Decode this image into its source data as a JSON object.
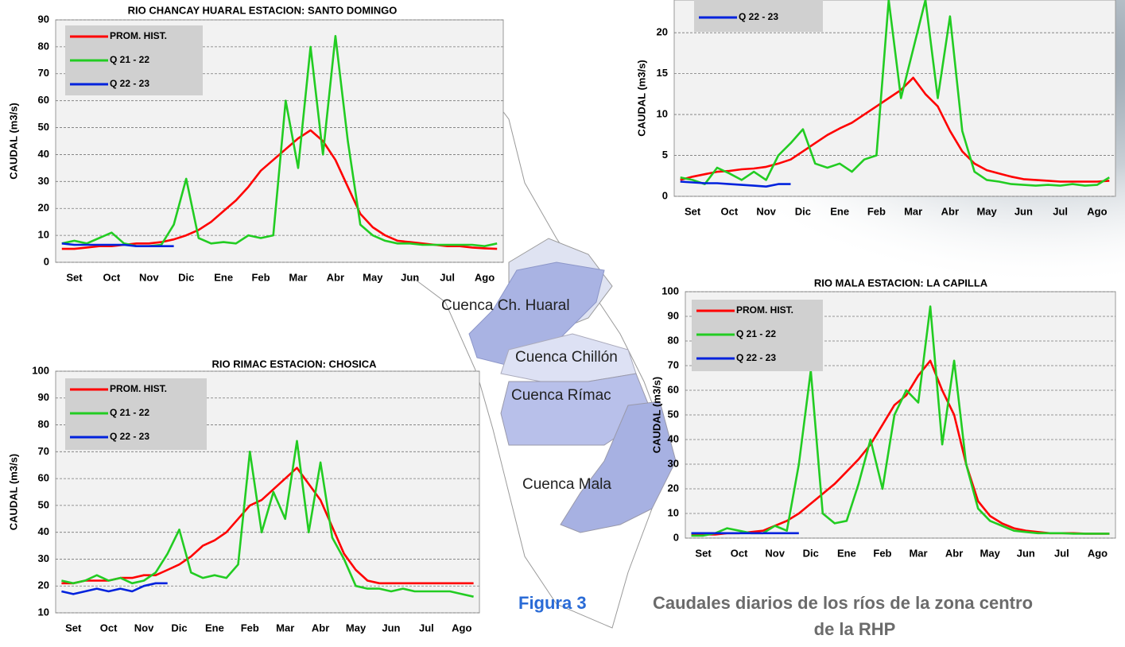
{
  "chart_data": [
    {
      "type": "line",
      "title": "RIO CHANCAY HUARAL ESTACION:  SANTO DOMINGO",
      "y_label": "CAUDAL (m3/s)",
      "categories": [
        "Set",
        null,
        null,
        "Oct",
        null,
        null,
        "Nov",
        null,
        null,
        "Dic",
        null,
        null,
        "Ene",
        null,
        null,
        "Feb",
        null,
        null,
        "Mar",
        null,
        null,
        "Abr",
        null,
        null,
        "May",
        null,
        null,
        "Jun",
        null,
        null,
        "Jul",
        null,
        null,
        "Ago",
        null,
        null
      ],
      "ylim": [
        0,
        90
      ],
      "yticks": [
        0,
        10,
        20,
        30,
        40,
        50,
        60,
        70,
        80,
        90
      ],
      "grid": true,
      "series": [
        {
          "name": "PROM. HIST.",
          "color": "#ff0000",
          "values": [
            5,
            5,
            5.5,
            6,
            6,
            6.5,
            7,
            7,
            7.5,
            8.5,
            10,
            12,
            15,
            19,
            23,
            28,
            34,
            38,
            42,
            46,
            49,
            45,
            38,
            28,
            18,
            13,
            10,
            8,
            7.5,
            7,
            6.5,
            6,
            6,
            5.5,
            5.2,
            5
          ]
        },
        {
          "name": "Q 21 - 22",
          "color": "#22cc22",
          "values": [
            7,
            8,
            7,
            9,
            11,
            7,
            6,
            6,
            6.5,
            14,
            31,
            9,
            7,
            7.5,
            7,
            10,
            9,
            10,
            60,
            35,
            80,
            40,
            84,
            45,
            14,
            10,
            8,
            7,
            7,
            6.5,
            6.5,
            6.5,
            6.5,
            6.5,
            6,
            7
          ]
        },
        {
          "name": "Q 22 - 23",
          "color": "#0022dd",
          "values": [
            7,
            6.5,
            6.5,
            6.5,
            6.5,
            6.5,
            6,
            6,
            6,
            6,
            null,
            null,
            null,
            null,
            null,
            null,
            null,
            null,
            null,
            null,
            null,
            null,
            null,
            null,
            null,
            null,
            null,
            null,
            null,
            null,
            null,
            null,
            null,
            null,
            null,
            null
          ]
        }
      ]
    },
    {
      "type": "line",
      "y_label": "CAUDAL (m3/s)",
      "categories": [
        "Set",
        null,
        null,
        "Oct",
        null,
        null,
        "Nov",
        null,
        null,
        "Dic",
        null,
        null,
        "Ene",
        null,
        null,
        "Feb",
        null,
        null,
        "Mar",
        null,
        null,
        "Abr",
        null,
        null,
        "May",
        null,
        null,
        "Jun",
        null,
        null,
        "Jul",
        null,
        null,
        "Ago",
        null,
        null
      ],
      "ylim": [
        0,
        24
      ],
      "yticks": [
        0,
        5,
        10,
        15,
        20
      ],
      "grid": true,
      "series": [
        {
          "color": "#ff0000",
          "values": [
            2,
            2.4,
            2.7,
            3,
            3.1,
            3.3,
            3.4,
            3.6,
            4,
            4.5,
            5.5,
            6.5,
            7.5,
            8.3,
            9,
            10,
            11,
            12,
            13,
            14.5,
            12.5,
            11,
            8,
            5.5,
            4,
            3.2,
            2.8,
            2.4,
            2.1,
            2,
            1.9,
            1.8,
            1.8,
            1.8,
            1.8,
            1.9
          ]
        },
        {
          "color": "#22cc22",
          "values": [
            2.3,
            2,
            1.5,
            3.5,
            2.8,
            2,
            3,
            2,
            5,
            6.5,
            8.2,
            4,
            3.5,
            4,
            3,
            4.5,
            5,
            24,
            12,
            18,
            24,
            12,
            22,
            8,
            3,
            2,
            1.8,
            1.5,
            1.4,
            1.3,
            1.4,
            1.3,
            1.5,
            1.3,
            1.4,
            2.3
          ]
        },
        {
          "name": "Q 22 - 23",
          "color": "#0022dd",
          "values": [
            1.8,
            1.7,
            1.6,
            1.6,
            1.5,
            1.4,
            1.3,
            1.2,
            1.5,
            1.5,
            null,
            null,
            null,
            null,
            null,
            null,
            null,
            null,
            null,
            null,
            null,
            null,
            null,
            null,
            null,
            null,
            null,
            null,
            null,
            null,
            null,
            null,
            null,
            null,
            null,
            null
          ]
        }
      ]
    },
    {
      "type": "line",
      "title": "RIO RIMAC ESTACION:  CHOSICA",
      "y_label": "CAUDAL (m3/s)",
      "categories": [
        "Set",
        null,
        null,
        "Oct",
        null,
        null,
        "Nov",
        null,
        null,
        "Dic",
        null,
        null,
        "Ene",
        null,
        null,
        "Feb",
        null,
        null,
        "Mar",
        null,
        null,
        "Abr",
        null,
        null,
        "May",
        null,
        null,
        "Jun",
        null,
        null,
        "Jul",
        null,
        null,
        "Ago",
        null,
        null
      ],
      "ylim": [
        10,
        100
      ],
      "yticks": [
        10,
        20,
        30,
        40,
        50,
        60,
        70,
        80,
        90,
        100
      ],
      "grid": true,
      "series": [
        {
          "name": "PROM. HIST.",
          "color": "#ff0000",
          "values": [
            21,
            21,
            22,
            22,
            22,
            23,
            23,
            24,
            24,
            26,
            28,
            31,
            35,
            37,
            40,
            45,
            50,
            52,
            56,
            60,
            64,
            58,
            52,
            42,
            32,
            26,
            22,
            21,
            21,
            21,
            21,
            21,
            21,
            21,
            21,
            21
          ]
        },
        {
          "name": "Q 21 - 22",
          "color": "#22cc22",
          "values": [
            22,
            21,
            22,
            24,
            22,
            23,
            21,
            22,
            25,
            32,
            41,
            25,
            23,
            24,
            23,
            28,
            70,
            40,
            55,
            45,
            74,
            40,
            66,
            38,
            30,
            20,
            19,
            19,
            18,
            19,
            18,
            18,
            18,
            18,
            17,
            16
          ]
        },
        {
          "name": "Q 22 - 23",
          "color": "#0022dd",
          "values": [
            18,
            17,
            18,
            19,
            18,
            19,
            18,
            20,
            21,
            21,
            null,
            null,
            null,
            null,
            null,
            null,
            null,
            null,
            null,
            null,
            null,
            null,
            null,
            null,
            null,
            null,
            null,
            null,
            null,
            null,
            null,
            null,
            null,
            null,
            null,
            null
          ]
        }
      ]
    },
    {
      "type": "line",
      "title": "RIO MALA ESTACION: LA CAPILLA",
      "y_label": "CAUDAL (m3/s)",
      "categories": [
        "Set",
        null,
        null,
        "Oct",
        null,
        null,
        "Nov",
        null,
        null,
        "Dic",
        null,
        null,
        "Ene",
        null,
        null,
        "Feb",
        null,
        null,
        "Mar",
        null,
        null,
        "Abr",
        null,
        null,
        "May",
        null,
        null,
        "Jun",
        null,
        null,
        "Jul",
        null,
        null,
        "Ago",
        null,
        null
      ],
      "ylim": [
        0,
        100
      ],
      "yticks": [
        0,
        10,
        20,
        30,
        40,
        50,
        60,
        70,
        80,
        90,
        100
      ],
      "grid": true,
      "series": [
        {
          "name": "PROM. HIST.",
          "color": "#ff0000",
          "values": [
            1.5,
            1.5,
            1.5,
            2,
            2,
            2.5,
            3,
            5,
            7,
            10,
            14,
            18,
            22,
            27,
            32,
            38,
            46,
            54,
            58,
            66,
            72,
            60,
            50,
            30,
            15,
            9,
            6,
            4,
            3,
            2.5,
            2,
            2,
            2,
            1.8,
            1.8,
            1.8
          ]
        },
        {
          "name": "Q 21 - 22",
          "color": "#22cc22",
          "values": [
            1,
            1,
            2,
            4,
            3,
            2,
            2,
            5,
            3,
            30,
            68,
            10,
            6,
            7,
            22,
            40,
            20,
            50,
            60,
            55,
            94,
            38,
            72,
            30,
            12,
            7,
            5,
            3,
            2.5,
            2,
            2,
            2,
            1.8,
            1.8,
            1.8,
            1.8
          ]
        },
        {
          "name": "Q 22 - 23",
          "color": "#0022dd",
          "values": [
            2,
            2,
            2,
            2,
            2,
            2,
            2,
            2,
            2,
            2,
            null,
            null,
            null,
            null,
            null,
            null,
            null,
            null,
            null,
            null,
            null,
            null,
            null,
            null,
            null,
            null,
            null,
            null,
            null,
            null,
            null,
            null,
            null,
            null,
            null,
            null
          ]
        }
      ]
    }
  ],
  "map": {
    "labels": [
      "Cuenca Ch. Huaral",
      "Cuenca Chillón",
      "Cuenca Rímac",
      "Cuenca Mala"
    ]
  },
  "figure": {
    "label": "Figura 3",
    "caption_lines": [
      "Caudales diarios de los ríos de la zona centro",
      "de la RHP"
    ]
  }
}
